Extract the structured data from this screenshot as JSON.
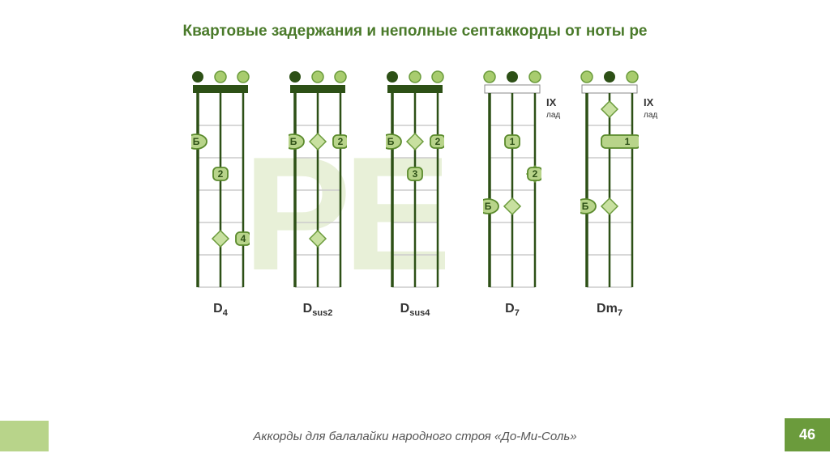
{
  "title": "Квартовые задержания и неполные септаккорды от ноты ре",
  "watermark": "РЕ",
  "footer": "Аккорды для балалайки народного строя «До-Ми-Соль»",
  "page_number": "46",
  "colors": {
    "dark": "#2d5016",
    "med": "#6b9b3c",
    "light": "#a8cc6e",
    "pale": "#c8e0a0",
    "thumb_bg": "#b8d48a",
    "thumb_border": "#5a8a2c",
    "barre_bg": "#b8d48a",
    "barre_border": "#5a8a2c",
    "diamond_fill": "#c8e0a0",
    "diamond_border": "#6b9b3c",
    "fret_line": "#cccccc"
  },
  "grid": {
    "width": 72,
    "nut_h": 10,
    "fret_h": 40,
    "frets": 6,
    "string_x": [
      8,
      36,
      64
    ]
  },
  "chords": [
    {
      "name": "D",
      "suffix": "4",
      "open_dots": [
        "dark",
        "light",
        "light"
      ],
      "nut_style": "solid",
      "fret_label": null,
      "markers": [
        {
          "type": "thumb",
          "string": 0,
          "fret": 2,
          "label": "Б"
        },
        {
          "type": "finger",
          "string": 1,
          "fret": 3,
          "label": "2"
        },
        {
          "type": "diamond",
          "string": 1,
          "fret": 5
        },
        {
          "type": "finger",
          "string": 2,
          "fret": 5,
          "label": "4"
        }
      ]
    },
    {
      "name": "D",
      "suffix": "sus2",
      "open_dots": [
        "dark",
        "light",
        "light"
      ],
      "nut_style": "solid",
      "fret_label": null,
      "markers": [
        {
          "type": "thumb",
          "string": 0,
          "fret": 2,
          "label": "Б"
        },
        {
          "type": "diamond",
          "string": 1,
          "fret": 2
        },
        {
          "type": "finger",
          "string": 2,
          "fret": 2,
          "label": "2"
        },
        {
          "type": "diamond",
          "string": 1,
          "fret": 5
        }
      ]
    },
    {
      "name": "D",
      "suffix": "sus4",
      "open_dots": [
        "dark",
        "light",
        "light"
      ],
      "nut_style": "solid",
      "fret_label": null,
      "markers": [
        {
          "type": "thumb",
          "string": 0,
          "fret": 2,
          "label": "Б"
        },
        {
          "type": "diamond",
          "string": 1,
          "fret": 2
        },
        {
          "type": "finger",
          "string": 2,
          "fret": 2,
          "label": "2"
        },
        {
          "type": "finger",
          "string": 1,
          "fret": 3,
          "label": "3"
        }
      ]
    },
    {
      "name": "D",
      "suffix": "7",
      "open_dots": [
        "light",
        "dark",
        "light"
      ],
      "nut_style": "open",
      "fret_label": "IX",
      "markers": [
        {
          "type": "finger",
          "string": 1,
          "fret": 2,
          "label": "1"
        },
        {
          "type": "diamond",
          "string": 2,
          "fret": 3
        },
        {
          "type": "finger",
          "string": 2,
          "fret": 3,
          "label": "2"
        },
        {
          "type": "thumb",
          "string": 0,
          "fret": 4,
          "label": "Б"
        },
        {
          "type": "diamond",
          "string": 1,
          "fret": 4
        }
      ]
    },
    {
      "name": "Dm",
      "suffix": "7",
      "open_dots": [
        "light",
        "dark",
        "light"
      ],
      "nut_style": "open",
      "fret_label": "IX",
      "markers": [
        {
          "type": "diamond",
          "string": 1,
          "fret": 1
        },
        {
          "type": "barre",
          "from": 1,
          "to": 2,
          "fret": 2,
          "label": "1"
        },
        {
          "type": "thumb",
          "string": 0,
          "fret": 4,
          "label": "Б"
        },
        {
          "type": "diamond",
          "string": 1,
          "fret": 4
        }
      ]
    }
  ]
}
